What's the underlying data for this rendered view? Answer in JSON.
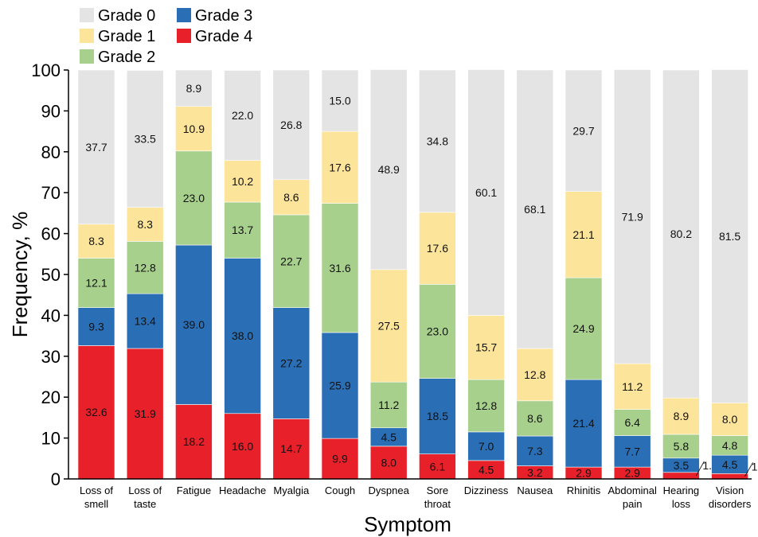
{
  "chart_data": {
    "type": "bar",
    "stacked": true,
    "categories": [
      [
        "Loss of",
        "smell"
      ],
      [
        "Loss of",
        "taste"
      ],
      [
        "Fatigue"
      ],
      [
        "Headache"
      ],
      [
        "Myalgia"
      ],
      [
        "Cough"
      ],
      [
        "Dyspnea"
      ],
      [
        "Sore",
        "throat"
      ],
      [
        "Dizziness"
      ],
      [
        "Nausea"
      ],
      [
        "Rhinitis"
      ],
      [
        "Abdominal",
        "pain"
      ],
      [
        "Hearing",
        "loss"
      ],
      [
        "Vision",
        "disorders"
      ]
    ],
    "series": [
      {
        "name": "Grade 4",
        "color": "#e8202a",
        "values": [
          32.6,
          31.9,
          18.2,
          16.0,
          14.7,
          9.9,
          8.0,
          6.1,
          4.5,
          3.2,
          2.9,
          2.9,
          1.6,
          1.3
        ],
        "labels": [
          "32.6",
          "31.9",
          "18.2",
          "16.0",
          "14.7",
          "9.9",
          "8.0",
          "6.1",
          "4.5",
          "3.2",
          "2.9",
          "2.9",
          "1.6",
          "1.3"
        ]
      },
      {
        "name": "Grade 3",
        "color": "#2a6fb5",
        "values": [
          9.3,
          13.4,
          39.0,
          38.0,
          27.2,
          25.9,
          4.5,
          18.5,
          7.0,
          7.3,
          21.4,
          7.7,
          3.5,
          4.5
        ],
        "labels": [
          "9.3",
          "13.4",
          "39.0",
          "38.0",
          "27.2",
          "25.9",
          "4.5",
          "18.5",
          "7.0",
          "7.3",
          "21.4",
          "7.7",
          "3.5",
          "4.5"
        ]
      },
      {
        "name": "Grade 2",
        "color": "#a8d08d",
        "values": [
          12.1,
          12.8,
          23.0,
          13.7,
          22.7,
          31.6,
          11.2,
          23.0,
          12.8,
          8.6,
          24.9,
          6.4,
          5.8,
          4.8
        ],
        "labels": [
          "12.1",
          "12.8",
          "23.0",
          "13.7",
          "22.7",
          "31.6",
          "11.2",
          "23.0",
          "12.8",
          "8.6",
          "24.9",
          "6.4",
          "5.8",
          "4.8"
        ]
      },
      {
        "name": "Grade 1",
        "color": "#fce49a",
        "values": [
          8.3,
          8.3,
          10.9,
          10.2,
          8.6,
          17.6,
          27.5,
          17.6,
          15.7,
          12.8,
          21.1,
          11.2,
          8.9,
          8.0
        ],
        "labels": [
          "8.3",
          "8.3",
          "10.9",
          "10.2",
          "8.6",
          "17.6",
          "27.5",
          "17.6",
          "15.7",
          "12.8",
          "21.1",
          "11.2",
          "8.9",
          "8.0"
        ]
      },
      {
        "name": "Grade 0",
        "color": "#e4e4e4",
        "values": [
          37.7,
          33.5,
          8.9,
          22.0,
          26.8,
          15.0,
          48.9,
          34.8,
          60.1,
          68.1,
          29.7,
          71.9,
          80.2,
          81.5
        ],
        "labels": [
          "37.7",
          "33.5",
          "8.9",
          "22.0",
          "26.8",
          "15.0",
          "48.9",
          "34.8",
          "60.1",
          "68.1",
          "29.7",
          "71.9",
          "80.2",
          "81.5"
        ]
      }
    ],
    "legend_order": [
      "Grade 0",
      "Grade 3",
      "Grade 1",
      "Grade 4",
      "Grade 2"
    ],
    "xlabel": "Symptom",
    "ylabel": "Frequency, %",
    "ylim": [
      0,
      100
    ],
    "yticks": [
      0,
      10,
      20,
      30,
      40,
      50,
      60,
      70,
      80,
      90,
      100
    ],
    "grid": false,
    "legend_position": "top-left"
  }
}
